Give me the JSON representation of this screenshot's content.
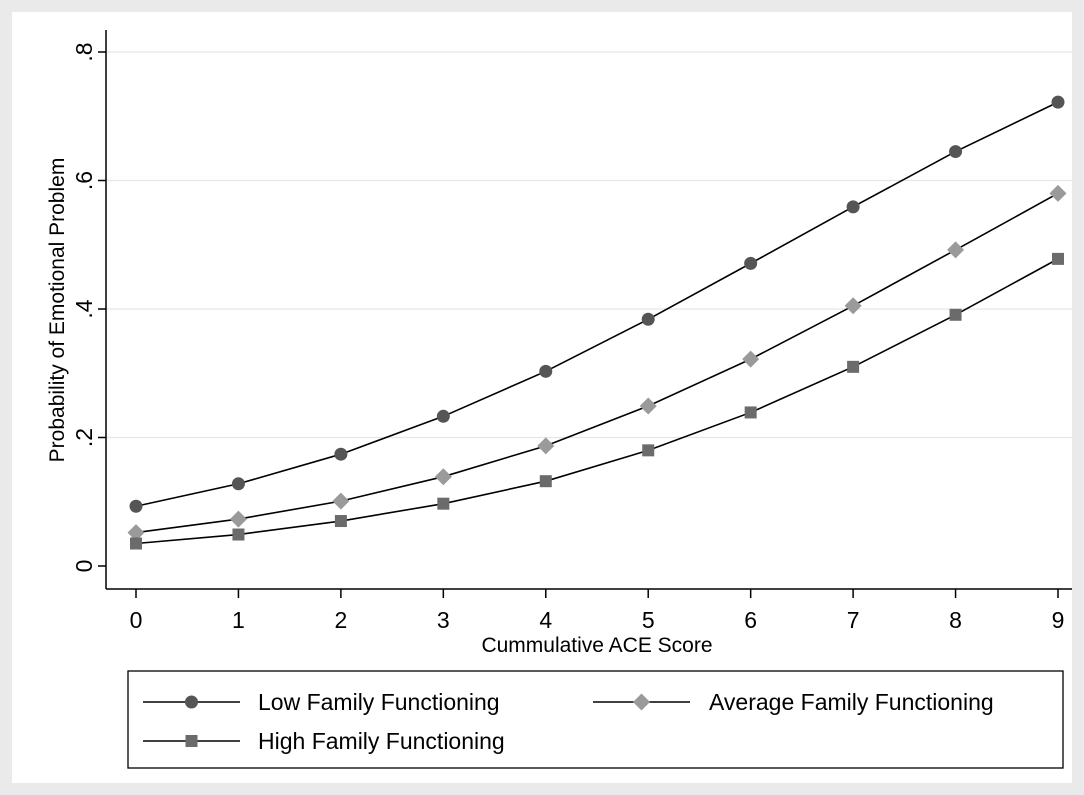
{
  "chart_data": {
    "type": "line",
    "title": "",
    "xlabel": "Cummulative ACE Score",
    "ylabel": "Probability of Emotional Problem",
    "x": [
      0,
      1,
      2,
      3,
      4,
      5,
      6,
      7,
      8,
      9
    ],
    "x_ticks": [
      {
        "value": 0,
        "label": "0"
      },
      {
        "value": 1,
        "label": "1"
      },
      {
        "value": 2,
        "label": "2"
      },
      {
        "value": 3,
        "label": "3"
      },
      {
        "value": 4,
        "label": "4"
      },
      {
        "value": 5,
        "label": "5"
      },
      {
        "value": 6,
        "label": "6"
      },
      {
        "value": 7,
        "label": "7"
      },
      {
        "value": 8,
        "label": "8"
      },
      {
        "value": 9,
        "label": "9"
      }
    ],
    "y_ticks": [
      {
        "value": 0,
        "label": "0"
      },
      {
        "value": 0.2,
        "label": ".2"
      },
      {
        "value": 0.4,
        "label": ".4"
      },
      {
        "value": 0.6,
        "label": ".6"
      },
      {
        "value": 0.8,
        "label": ".8"
      }
    ],
    "xlim": [
      0,
      9
    ],
    "ylim": [
      0,
      0.8
    ],
    "grid": "horizontal",
    "legend_position": "bottom",
    "series": [
      {
        "name": "Low Family Functioning",
        "marker": "circle",
        "color": "#555555",
        "values": [
          0.093,
          0.128,
          0.174,
          0.233,
          0.303,
          0.384,
          0.471,
          0.559,
          0.645,
          0.722
        ]
      },
      {
        "name": "Average Family Functioning",
        "marker": "diamond",
        "color": "#9a9a9a",
        "values": [
          0.052,
          0.073,
          0.101,
          0.139,
          0.187,
          0.249,
          0.322,
          0.405,
          0.492,
          0.58
        ]
      },
      {
        "name": "High Family Functioning",
        "marker": "square",
        "color": "#6b6b6b",
        "values": [
          0.035,
          0.049,
          0.07,
          0.097,
          0.132,
          0.18,
          0.239,
          0.31,
          0.391,
          0.478
        ]
      }
    ]
  }
}
